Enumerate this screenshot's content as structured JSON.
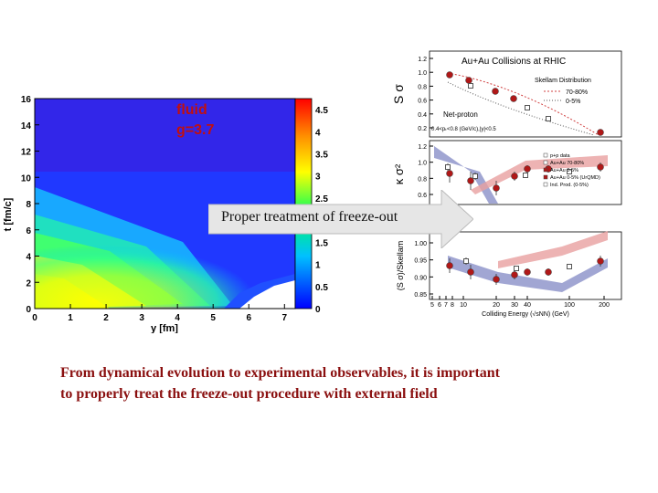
{
  "heatmap": {
    "annotation_line1": "fluid",
    "annotation_line2": "g=3.7",
    "y_axis_label": "t [fm/c]",
    "x_axis_label": "y [fm]",
    "y_ticks": [
      "0",
      "2",
      "4",
      "6",
      "8",
      "10",
      "12",
      "14",
      "16"
    ],
    "x_ticks": [
      "0",
      "1",
      "2",
      "3",
      "4",
      "5",
      "6",
      "7"
    ],
    "colorbar_ticks": [
      "0",
      "0.5",
      "1",
      "1.5",
      "2",
      "2.5",
      "3",
      "3.5",
      "4",
      "4.5"
    ]
  },
  "arrow": {
    "label": "Proper treatment of freeze-out"
  },
  "rhic": {
    "title": "Au+Au Collisions at RHIC",
    "legend_title": "Skellam Distribution",
    "legend_top": [
      "70-80%",
      "0-5%"
    ],
    "net_proton": "Net-proton",
    "cuts": "0.4<pₜ<0.8 (GeV/c),|y|<0.5",
    "top_y_label": "S σ",
    "mid_y_label": "κ σ²",
    "bot_y_label": "(S σ)/Skellam",
    "top_y_ticks": [
      "1.2",
      "1.0",
      "0.8",
      "0.6",
      "0.4",
      "0.2"
    ],
    "mid_y_ticks": [
      "1.2",
      "1.0",
      "0.8",
      "0.6"
    ],
    "bot_y_ticks": [
      "1.00",
      "0.95",
      "0.90",
      "0.85"
    ],
    "x_ticks": [
      "5",
      "6",
      "7",
      "8",
      "10",
      "20",
      "30",
      "40",
      "100",
      "200"
    ],
    "x_axis_label": "Colliding Energy (√sNN) (GeV)",
    "mid_legend": [
      "p+p data",
      "Au+Au 70-80%",
      "Au+Au 0-5%",
      "Au+Au 0-5% (UrQMD)",
      "Ind. Prod. (0-5%)"
    ],
    "colors": {
      "data_point": "#b01818",
      "band_blue": "#8a90c8",
      "band_red": "#e8a0a0",
      "open_marker": "#555555"
    }
  },
  "caption": {
    "line1": "From dynamical evolution to experimental observables,  it is important",
    "line2": "to properly treat the freeze-out procedure with external field"
  }
}
